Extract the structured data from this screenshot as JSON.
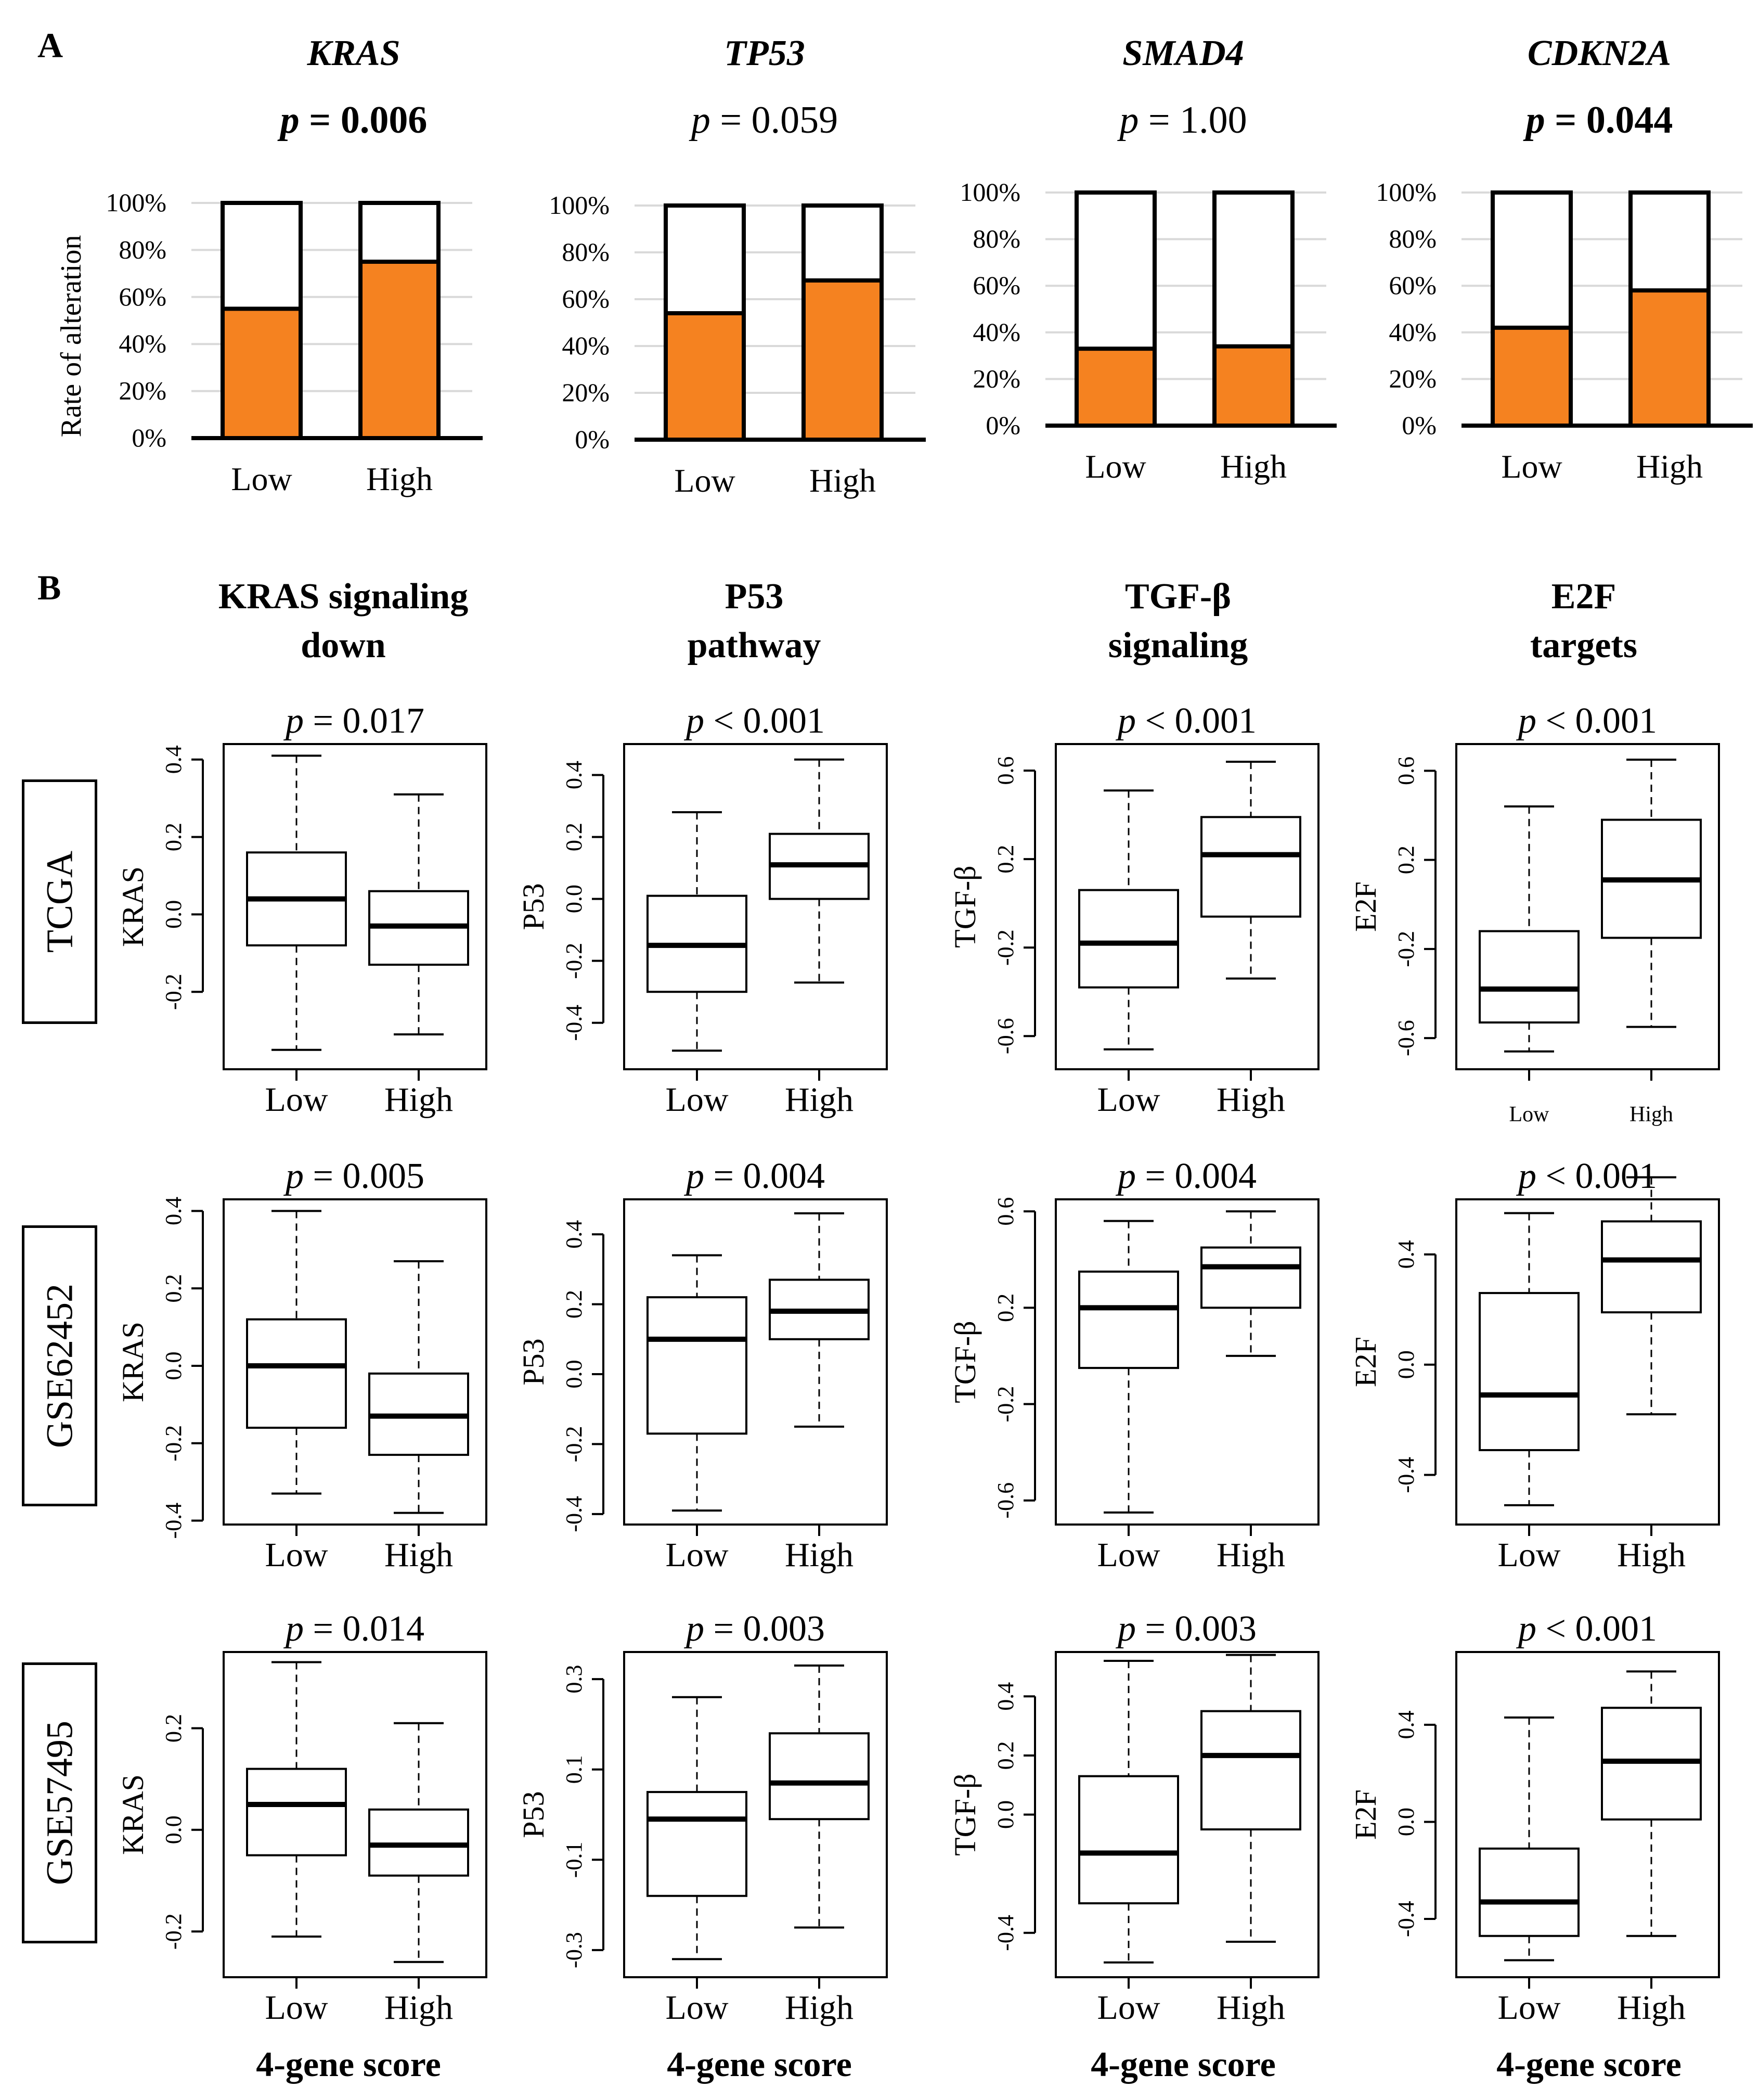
{
  "panel_a": {
    "label": "A",
    "y_axis_label": "Rate of alteration",
    "colors": {
      "altered": "#f58220",
      "unaltered": "#ffffff",
      "grid": "#d9d9d9"
    }
  },
  "panel_b": {
    "label": "B",
    "datasets": [
      "TCGA",
      "GSE62452",
      "GSE57495"
    ],
    "x_footer": "4-gene score"
  },
  "chart_data": [
    {
      "type": "bar",
      "id": "A-KRAS",
      "title": "KRAS",
      "p_label": "p",
      "p_value": "= 0.006",
      "p_bold": true,
      "categories": [
        "Low",
        "High"
      ],
      "values": [
        55,
        75
      ],
      "ylim": [
        0,
        100
      ],
      "yticks": [
        "0%",
        "20%",
        "40%",
        "60%",
        "80%",
        "100%"
      ],
      "ylabel": "Rate of alteration"
    },
    {
      "type": "bar",
      "id": "A-TP53",
      "title": "TP53",
      "p_label": "p",
      "p_value": "= 0.059",
      "p_bold": false,
      "categories": [
        "Low",
        "High"
      ],
      "values": [
        54,
        68
      ],
      "ylim": [
        0,
        100
      ],
      "yticks": [
        "0%",
        "20%",
        "40%",
        "60%",
        "80%",
        "100%"
      ],
      "ylabel": ""
    },
    {
      "type": "bar",
      "id": "A-SMAD4",
      "title": "SMAD4",
      "p_label": "p",
      "p_value": "= 1.00",
      "p_bold": false,
      "categories": [
        "Low",
        "High"
      ],
      "values": [
        33,
        34
      ],
      "ylim": [
        0,
        100
      ],
      "yticks": [
        "0%",
        "20%",
        "40%",
        "60%",
        "80%",
        "100%"
      ],
      "ylabel": ""
    },
    {
      "type": "bar",
      "id": "A-CDKN2A",
      "title": "CDKN2A",
      "p_label": "p",
      "p_value": "= 0.044",
      "p_bold": true,
      "categories": [
        "Low",
        "High"
      ],
      "values": [
        42,
        58
      ],
      "ylim": [
        0,
        100
      ],
      "yticks": [
        "0%",
        "20%",
        "40%",
        "60%",
        "80%",
        "100%"
      ],
      "ylabel": ""
    },
    {
      "type": "box",
      "id": "B-TCGA-KRAS",
      "dataset": "TCGA",
      "pathway_title": [
        "KRAS signaling",
        "down"
      ],
      "p_label": "p",
      "p_value": "= 0.017",
      "ylabel": "KRAS",
      "ylim": [
        -0.4,
        0.44
      ],
      "yticks": [
        -0.2,
        0.0,
        0.2,
        0.4
      ],
      "ytick_labels": [
        "-0.2",
        "0.0",
        "0.2",
        "0.4"
      ],
      "categories": [
        "Low",
        "High"
      ],
      "small_xlabels": false,
      "boxes": [
        {
          "min": -0.35,
          "q1": -0.08,
          "median": 0.04,
          "q3": 0.16,
          "max": 0.41
        },
        {
          "min": -0.31,
          "q1": -0.13,
          "median": -0.03,
          "q3": 0.06,
          "max": 0.31
        }
      ]
    },
    {
      "type": "box",
      "id": "B-TCGA-P53",
      "dataset": "TCGA",
      "pathway_title": [
        "P53",
        "pathway"
      ],
      "p_label": "p",
      "p_value": "< 0.001",
      "ylabel": "P53",
      "ylim": [
        -0.55,
        0.5
      ],
      "yticks": [
        -0.4,
        -0.2,
        0.0,
        0.2,
        0.4
      ],
      "ytick_labels": [
        "-0.4",
        "-0.2",
        "0.0",
        "0.2",
        "0.4"
      ],
      "categories": [
        "Low",
        "High"
      ],
      "small_xlabels": false,
      "boxes": [
        {
          "min": -0.49,
          "q1": -0.3,
          "median": -0.15,
          "q3": 0.01,
          "max": 0.28
        },
        {
          "min": -0.27,
          "q1": 0.0,
          "median": 0.11,
          "q3": 0.21,
          "max": 0.45
        }
      ]
    },
    {
      "type": "box",
      "id": "B-TCGA-TGFB",
      "dataset": "TCGA",
      "pathway_title": [
        "TGF-β",
        "signaling"
      ],
      "p_label": "p",
      "p_value": "< 0.001",
      "ylabel": "TGF-β",
      "ylim": [
        -0.75,
        0.72
      ],
      "yticks": [
        -0.6,
        -0.2,
        0.2,
        0.6
      ],
      "ytick_labels": [
        "-0.6",
        "-0.2",
        "0.2",
        "0.6"
      ],
      "categories": [
        "Low",
        "High"
      ],
      "small_xlabels": false,
      "boxes": [
        {
          "min": -0.66,
          "q1": -0.38,
          "median": -0.18,
          "q3": 0.06,
          "max": 0.51
        },
        {
          "min": -0.34,
          "q1": -0.06,
          "median": 0.22,
          "q3": 0.39,
          "max": 0.64
        }
      ]
    },
    {
      "type": "box",
      "id": "B-TCGA-E2F",
      "dataset": "TCGA",
      "pathway_title": [
        "E2F",
        "targets"
      ],
      "p_label": "p",
      "p_value": "< 0.001",
      "ylabel": "E2F",
      "ylim": [
        -0.74,
        0.72
      ],
      "yticks": [
        -0.6,
        -0.2,
        0.2,
        0.6
      ],
      "ytick_labels": [
        "-0.6",
        "-0.2",
        "0.2",
        "0.6"
      ],
      "categories": [
        "Low",
        "High"
      ],
      "small_xlabels": true,
      "boxes": [
        {
          "min": -0.66,
          "q1": -0.53,
          "median": -0.38,
          "q3": -0.12,
          "max": 0.44
        },
        {
          "min": -0.55,
          "q1": -0.15,
          "median": 0.11,
          "q3": 0.38,
          "max": 0.65
        }
      ]
    },
    {
      "type": "box",
      "id": "B-GSE62452-KRAS",
      "dataset": "GSE62452",
      "p_label": "p",
      "p_value": "= 0.005",
      "ylabel": "KRAS",
      "ylim": [
        -0.41,
        0.43
      ],
      "yticks": [
        -0.4,
        -0.2,
        0.0,
        0.2,
        0.4
      ],
      "ytick_labels": [
        "-0.4",
        "-0.2",
        "0.0",
        "0.2",
        "0.4"
      ],
      "categories": [
        "Low",
        "High"
      ],
      "small_xlabels": false,
      "boxes": [
        {
          "min": -0.33,
          "q1": -0.16,
          "median": 0.0,
          "q3": 0.12,
          "max": 0.4
        },
        {
          "min": -0.38,
          "q1": -0.23,
          "median": -0.13,
          "q3": -0.02,
          "max": 0.27
        }
      ]
    },
    {
      "type": "box",
      "id": "B-GSE62452-P53",
      "dataset": "GSE62452",
      "p_label": "p",
      "p_value": "= 0.004",
      "ylabel": "P53",
      "ylim": [
        -0.43,
        0.5
      ],
      "yticks": [
        -0.4,
        -0.2,
        0.0,
        0.2,
        0.4
      ],
      "ytick_labels": [
        "-0.4",
        "-0.2",
        "0.0",
        "0.2",
        "0.4"
      ],
      "categories": [
        "Low",
        "High"
      ],
      "small_xlabels": false,
      "boxes": [
        {
          "min": -0.39,
          "q1": -0.17,
          "median": 0.1,
          "q3": 0.22,
          "max": 0.34
        },
        {
          "min": -0.15,
          "q1": 0.1,
          "median": 0.18,
          "q3": 0.27,
          "max": 0.46
        }
      ]
    },
    {
      "type": "box",
      "id": "B-GSE62452-TGFB",
      "dataset": "GSE62452",
      "p_label": "p",
      "p_value": "= 0.004",
      "ylabel": "TGF-β",
      "ylim": [
        -0.7,
        0.65
      ],
      "yticks": [
        -0.6,
        -0.2,
        0.2,
        0.6
      ],
      "ytick_labels": [
        "-0.6",
        "-0.2",
        "0.2",
        "0.6"
      ],
      "categories": [
        "Low",
        "High"
      ],
      "small_xlabels": false,
      "boxes": [
        {
          "min": -0.65,
          "q1": -0.05,
          "median": 0.2,
          "q3": 0.35,
          "max": 0.56
        },
        {
          "min": 0.0,
          "q1": 0.2,
          "median": 0.37,
          "q3": 0.45,
          "max": 0.6
        }
      ]
    },
    {
      "type": "box",
      "id": "B-GSE62452-E2F",
      "dataset": "GSE62452",
      "p_label": "p",
      "p_value": "< 0.001",
      "ylabel": "E2F",
      "ylim": [
        -0.58,
        0.6
      ],
      "yticks": [
        -0.4,
        0.0,
        0.4
      ],
      "ytick_labels": [
        "-0.4",
        "0.0",
        "0.4"
      ],
      "categories": [
        "Low",
        "High"
      ],
      "small_xlabels": false,
      "boxes": [
        {
          "min": -0.51,
          "q1": -0.31,
          "median": -0.11,
          "q3": 0.26,
          "max": 0.55
        },
        {
          "min": -0.18,
          "q1": 0.19,
          "median": 0.38,
          "q3": 0.52,
          "max": 0.68
        }
      ]
    },
    {
      "type": "box",
      "id": "B-GSE57495-KRAS",
      "dataset": "GSE57495",
      "p_label": "p",
      "p_value": "= 0.014",
      "ylabel": "KRAS",
      "ylim": [
        -0.29,
        0.35
      ],
      "yticks": [
        -0.2,
        0.0,
        0.2
      ],
      "ytick_labels": [
        "-0.2",
        "0.0",
        "0.2"
      ],
      "categories": [
        "Low",
        "High"
      ],
      "small_xlabels": false,
      "boxes": [
        {
          "min": -0.21,
          "q1": -0.05,
          "median": 0.05,
          "q3": 0.12,
          "max": 0.33
        },
        {
          "min": -0.26,
          "q1": -0.09,
          "median": -0.03,
          "q3": 0.04,
          "max": 0.21
        }
      ]
    },
    {
      "type": "box",
      "id": "B-GSE57495-P53",
      "dataset": "GSE57495",
      "p_label": "p",
      "p_value": "= 0.003",
      "ylabel": "P53",
      "ylim": [
        -0.36,
        0.36
      ],
      "yticks": [
        -0.3,
        -0.1,
        0.1,
        0.3
      ],
      "ytick_labels": [
        "-0.3",
        "-0.1",
        "0.1",
        "0.3"
      ],
      "categories": [
        "Low",
        "High"
      ],
      "small_xlabels": false,
      "boxes": [
        {
          "min": -0.32,
          "q1": -0.18,
          "median": -0.01,
          "q3": 0.05,
          "max": 0.26
        },
        {
          "min": -0.25,
          "q1": -0.01,
          "median": 0.07,
          "q3": 0.18,
          "max": 0.33
        }
      ]
    },
    {
      "type": "box",
      "id": "B-GSE57495-TGFB",
      "dataset": "GSE57495",
      "p_label": "p",
      "p_value": "= 0.003",
      "ylabel": "TGF-β",
      "ylim": [
        -0.55,
        0.55
      ],
      "yticks": [
        -0.4,
        0.0,
        0.2,
        0.4
      ],
      "ytick_labels": [
        "-0.4",
        "0.0",
        "0.2",
        "0.4"
      ],
      "categories": [
        "Low",
        "High"
      ],
      "small_xlabels": false,
      "boxes": [
        {
          "min": -0.5,
          "q1": -0.3,
          "median": -0.13,
          "q3": 0.13,
          "max": 0.52
        },
        {
          "min": -0.43,
          "q1": -0.05,
          "median": 0.2,
          "q3": 0.35,
          "max": 0.54
        }
      ]
    },
    {
      "type": "box",
      "id": "B-GSE57495-E2F",
      "dataset": "GSE57495",
      "p_label": "p",
      "p_value": "< 0.001",
      "ylabel": "E2F",
      "ylim": [
        -0.64,
        0.7
      ],
      "yticks": [
        -0.4,
        0.0,
        0.4
      ],
      "ytick_labels": [
        "-0.4",
        "0.0",
        "0.4"
      ],
      "categories": [
        "Low",
        "High"
      ],
      "small_xlabels": false,
      "boxes": [
        {
          "min": -0.57,
          "q1": -0.47,
          "median": -0.33,
          "q3": -0.11,
          "max": 0.43
        },
        {
          "min": -0.47,
          "q1": 0.01,
          "median": 0.25,
          "q3": 0.47,
          "max": 0.62
        }
      ]
    }
  ]
}
